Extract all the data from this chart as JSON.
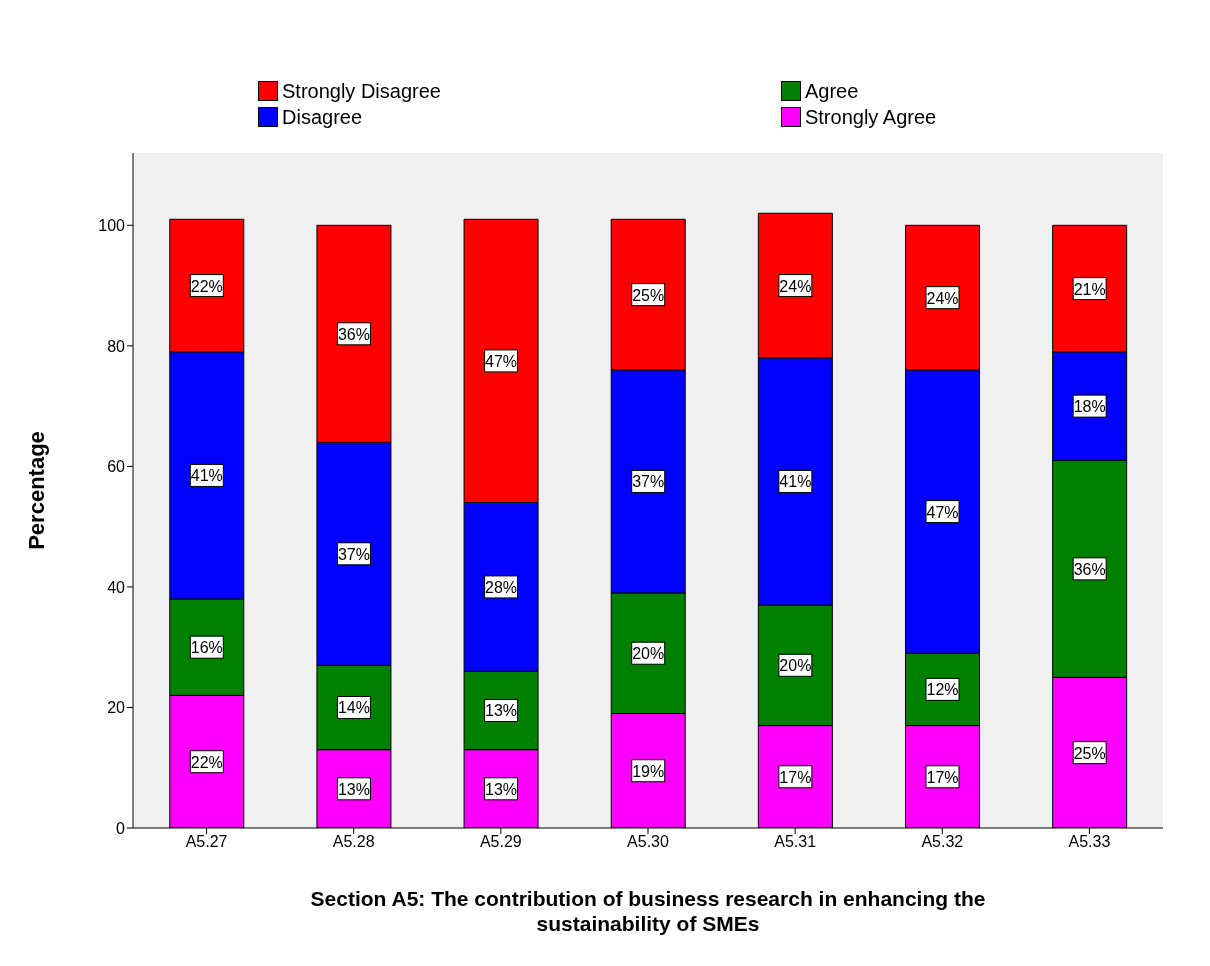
{
  "chart_data": {
    "type": "bar",
    "stacked": true,
    "xlabel": "Section A5: The contribution of business research in enhancing the sustainability of SMEs",
    "ylabel": "Percentage",
    "categories": [
      "A5.27",
      "A5.28",
      "A5.29",
      "A5.30",
      "A5.31",
      "A5.32",
      "A5.33"
    ],
    "series": [
      {
        "name": "Strongly Agree",
        "color": "#ff00ff",
        "values": [
          22,
          13,
          13,
          19,
          17,
          17,
          25
        ],
        "value_labels": [
          "22%",
          "13%",
          "13%",
          "19%",
          "17%",
          "17%",
          "25%"
        ]
      },
      {
        "name": "Agree",
        "color": "#008000",
        "values": [
          16,
          14,
          13,
          20,
          20,
          12,
          36
        ],
        "value_labels": [
          "16%",
          "14%",
          "13%",
          "20%",
          "20%",
          "12%",
          "36%"
        ]
      },
      {
        "name": "Disagree",
        "color": "#0000ff",
        "values": [
          41,
          37,
          28,
          37,
          41,
          47,
          18
        ],
        "value_labels": [
          "41%",
          "37%",
          "28%",
          "37%",
          "41%",
          "47%",
          "18%"
        ]
      },
      {
        "name": "Strongly Disagree",
        "color": "#ff0000",
        "values": [
          22,
          36,
          47,
          25,
          24,
          24,
          21
        ],
        "value_labels": [
          "22%",
          "36%",
          "47%",
          "25%",
          "24%",
          "24%",
          "21%"
        ]
      }
    ],
    "ylim": [
      0,
      112
    ],
    "yticks": [
      0,
      20,
      40,
      60,
      80,
      100
    ],
    "grid": false,
    "legend": "top"
  }
}
